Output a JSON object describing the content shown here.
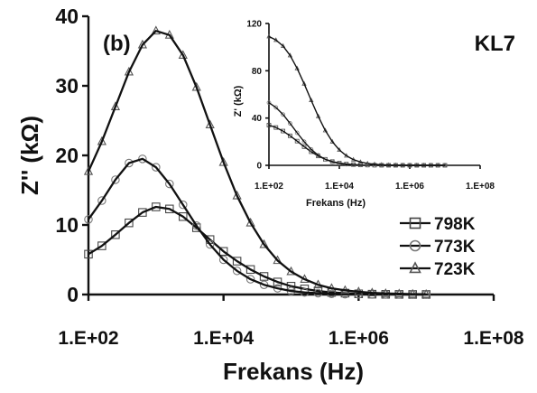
{
  "chart_data": [
    {
      "type": "line",
      "panel_label": "(b)",
      "xlabel": "Frekans (Hz)",
      "ylabel": "Z'' (kΩ)",
      "x_scale": "log",
      "xlim": [
        100,
        100000000
      ],
      "ylim": [
        0,
        40
      ],
      "x_ticks": [
        100,
        10000,
        1000000,
        100000000
      ],
      "x_tick_labels": [
        "1.E+02",
        "1.E+04",
        "1.E+06",
        "1.E+08"
      ],
      "y_ticks": [
        0,
        10,
        20,
        30,
        40
      ],
      "y_tick_labels": [
        "0",
        "10",
        "20",
        "30",
        "40"
      ],
      "grid": false,
      "legend_position": "bottom-right",
      "x": [
        100,
        158,
        251,
        398,
        631,
        1000,
        1585,
        2512,
        3981,
        6310,
        10000,
        15849,
        25119,
        39811,
        63096,
        100000,
        158489,
        251189,
        398107,
        630957,
        1000000,
        1584893,
        2511886,
        3981072,
        6309573,
        10000000
      ],
      "series": [
        {
          "name": "798K",
          "marker": "square",
          "values": [
            5.8,
            7.0,
            8.6,
            10.3,
            11.8,
            12.6,
            12.3,
            11.2,
            9.6,
            7.9,
            6.2,
            4.8,
            3.6,
            2.6,
            1.8,
            1.2,
            0.8,
            0.5,
            0.3,
            0.2,
            0.1,
            0.05,
            0.03,
            0.02,
            0.01,
            0.01
          ]
        },
        {
          "name": "773K",
          "marker": "circle",
          "values": [
            10.8,
            13.5,
            16.5,
            18.9,
            19.5,
            18.3,
            15.9,
            12.9,
            9.9,
            7.2,
            5.0,
            3.4,
            2.2,
            1.4,
            0.9,
            0.5,
            0.3,
            0.2,
            0.1,
            0.05,
            0.03,
            0.02,
            0.01,
            0.01,
            0.0,
            0.0
          ]
        },
        {
          "name": "723K",
          "marker": "triangle",
          "values": [
            17.7,
            22.0,
            27.0,
            32.0,
            35.9,
            37.9,
            37.3,
            34.4,
            29.8,
            24.4,
            19.0,
            14.2,
            10.3,
            7.2,
            4.9,
            3.3,
            2.2,
            1.4,
            0.9,
            0.6,
            0.4,
            0.25,
            0.15,
            0.1,
            0.06,
            0.04
          ]
        }
      ],
      "annotation": "KL7"
    },
    {
      "type": "line",
      "xlabel": "Frekans (Hz)",
      "ylabel": "Z' (kΩ)",
      "x_scale": "log",
      "xlim": [
        100,
        100000000
      ],
      "ylim": [
        0,
        120
      ],
      "x_ticks": [
        100,
        10000,
        1000000,
        100000000
      ],
      "x_tick_labels": [
        "1.E+02",
        "1.E+04",
        "1.E+06",
        "1.E+08"
      ],
      "y_ticks": [
        0,
        40,
        80,
        120
      ],
      "y_tick_labels": [
        "0",
        "40",
        "80",
        "120"
      ],
      "grid": false,
      "x": [
        100,
        158,
        251,
        398,
        631,
        1000,
        1585,
        2512,
        3981,
        6310,
        10000,
        15849,
        25119,
        39811,
        63096,
        100000,
        158489,
        251189,
        398107,
        630957,
        1000000,
        1584893,
        2511886,
        3981072,
        6309573,
        10000000
      ],
      "series": [
        {
          "name": "798K",
          "marker": "square",
          "values": [
            34,
            32,
            29,
            25,
            20.5,
            15.8,
            11.5,
            7.9,
            5.1,
            3.2,
            1.9,
            1.1,
            0.6,
            0.3,
            0.2,
            0.1,
            0.05,
            0.03,
            0.02,
            0.01,
            0.0,
            0.0,
            0.0,
            0.0,
            0.0,
            0.0
          ]
        },
        {
          "name": "773K",
          "marker": "circle",
          "values": [
            53,
            49,
            43,
            35.5,
            27.5,
            20,
            13.5,
            8.5,
            5.1,
            2.9,
            1.6,
            0.9,
            0.5,
            0.25,
            0.12,
            0.06,
            0.03,
            0.02,
            0.01,
            0.0,
            0.0,
            0.0,
            0.0,
            0.0,
            0.0,
            0.0
          ]
        },
        {
          "name": "723K",
          "marker": "triangle",
          "values": [
            109,
            106,
            101,
            93,
            82,
            69,
            55,
            41.5,
            29.5,
            20,
            13,
            8.1,
            4.8,
            2.8,
            1.6,
            0.9,
            0.5,
            0.28,
            0.15,
            0.08,
            0.04,
            0.02,
            0.01,
            0.0,
            0.0,
            0.0
          ]
        }
      ]
    }
  ]
}
